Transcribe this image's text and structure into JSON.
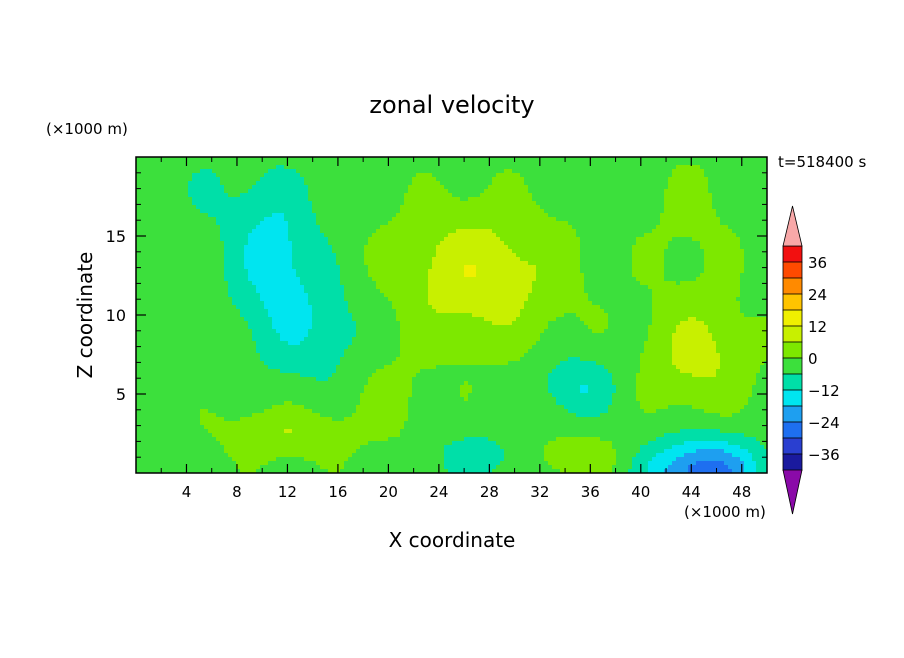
{
  "chart_data": {
    "type": "heatmap",
    "title": "zonal velocity",
    "xlabel": "X coordinate",
    "ylabel": "Z coordinate",
    "x_unit": "(×1000 m)",
    "y_unit": "(×1000 m)",
    "time_label": "t=518400 s",
    "xlim": [
      0,
      50
    ],
    "ylim": [
      0,
      20
    ],
    "x_ticks": [
      4,
      8,
      12,
      16,
      20,
      24,
      28,
      32,
      36,
      40,
      44,
      48
    ],
    "y_ticks": [
      5,
      10,
      15
    ],
    "colorbar": {
      "ticks": [
        36,
        24,
        12,
        0,
        -12,
        -24,
        -36
      ],
      "levels": [
        -42,
        -36,
        -30,
        -24,
        -18,
        -12,
        -6,
        0,
        6,
        12,
        18,
        24,
        30,
        36,
        42
      ],
      "colors": [
        "#6a0aa6",
        "#1a1a9e",
        "#2a3fd0",
        "#1e6ff0",
        "#1e9ff0",
        "#00e5f0",
        "#00dfa8",
        "#3ce03c",
        "#7de800",
        "#c8f000",
        "#f0f000",
        "#ffc400",
        "#ff8a00",
        "#ff4a00",
        "#f21010",
        "#ffb0b0"
      ],
      "over_color": "#f8a8a8",
      "under_color": "#8a0aa8"
    },
    "field_features": [
      {
        "x": 27,
        "z": 12.5,
        "amp": 13,
        "sx": 6.5,
        "sz": 4.2
      },
      {
        "x": 44.5,
        "z": 7.5,
        "amp": 10,
        "sx": 4.0,
        "sz": 3.5
      },
      {
        "x": 11,
        "z": 14,
        "amp": -12,
        "sx": 3.5,
        "sz": 4.5
      },
      {
        "x": 14,
        "z": 9,
        "amp": -8,
        "sx": 5.0,
        "sz": 3.5
      },
      {
        "x": 35,
        "z": 5.5,
        "amp": -10,
        "sx": 3.0,
        "sz": 2.0
      },
      {
        "x": 45,
        "z": 0,
        "amp": -26,
        "sx": 4.5,
        "sz": 2.2
      },
      {
        "x": 12,
        "z": 2.5,
        "amp": 8,
        "sx": 5.0,
        "sz": 1.6
      },
      {
        "x": 27,
        "z": 1,
        "amp": -8,
        "sx": 3.5,
        "sz": 1.5
      },
      {
        "x": 35,
        "z": 1,
        "amp": 6,
        "sx": 4.0,
        "sz": 1.5
      },
      {
        "x": 5,
        "z": 18,
        "amp": -3,
        "sx": 5.0,
        "sz": 4.0
      },
      {
        "x": 44,
        "z": 16,
        "amp": 3,
        "sx": 4.0,
        "sz": 4.0
      },
      {
        "x": 20,
        "z": 5,
        "amp": 4,
        "sx": 3.0,
        "sz": 3.0
      }
    ],
    "field_background": -2
  }
}
